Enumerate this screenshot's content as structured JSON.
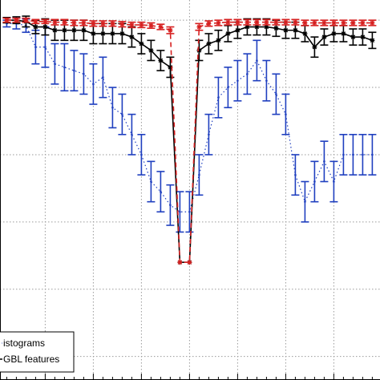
{
  "chart_data": {
    "type": "line",
    "x": [
      1,
      2,
      3,
      4,
      5,
      6,
      7,
      8,
      9,
      10,
      11,
      12,
      13,
      14,
      15,
      16,
      17,
      18,
      19,
      20,
      21,
      22,
      23,
      24,
      25,
      26,
      27,
      28,
      29,
      30,
      31,
      32,
      33,
      34,
      35,
      36,
      37,
      38,
      39
    ],
    "xlim": [
      0.3,
      39.8
    ],
    "ylim": [
      0.465,
      1.03
    ],
    "grid": true,
    "series": [
      {
        "name": "",
        "color": "#1f3fbf",
        "style": "dotted",
        "y": [
          0.995,
          0.995,
          0.992,
          0.96,
          0.96,
          0.935,
          0.93,
          0.925,
          0.92,
          0.905,
          0.915,
          0.87,
          0.86,
          0.83,
          0.8,
          0.76,
          0.745,
          0.725,
          0.715,
          0.715,
          0.77,
          0.83,
          0.885,
          0.9,
          0.91,
          0.92,
          0.94,
          0.91,
          0.89,
          0.86,
          0.77,
          0.73,
          0.76,
          0.79,
          0.76,
          0.8,
          0.8,
          0.8,
          0.8
        ],
        "err": [
          0.005,
          0.008,
          0.01,
          0.025,
          0.03,
          0.03,
          0.035,
          0.03,
          0.03,
          0.03,
          0.03,
          0.03,
          0.03,
          0.03,
          0.03,
          0.03,
          0.03,
          0.03,
          0.03,
          0.03,
          0.03,
          0.03,
          0.03,
          0.03,
          0.03,
          0.03,
          0.03,
          0.03,
          0.03,
          0.03,
          0.03,
          0.03,
          0.03,
          0.03,
          0.03,
          0.03,
          0.03,
          0.03,
          0.03
        ]
      },
      {
        "name": "",
        "color": "#000000",
        "style": "solid",
        "y": [
          1.0,
          1.0,
          0.998,
          0.99,
          0.99,
          0.985,
          0.985,
          0.985,
          0.985,
          0.98,
          0.98,
          0.98,
          0.98,
          0.975,
          0.965,
          0.955,
          0.94,
          0.93,
          0.64,
          0.64,
          0.955,
          0.965,
          0.97,
          0.98,
          0.985,
          0.99,
          0.99,
          0.99,
          0.988,
          0.985,
          0.985,
          0.98,
          0.96,
          0.975,
          0.98,
          0.98,
          0.975,
          0.975,
          0.97
        ],
        "err": [
          0.004,
          0.005,
          0.008,
          0.01,
          0.012,
          0.015,
          0.015,
          0.015,
          0.015,
          0.015,
          0.015,
          0.015,
          0.015,
          0.015,
          0.015,
          0.015,
          0.015,
          0.015,
          0.0,
          0.0,
          0.015,
          0.015,
          0.015,
          0.012,
          0.012,
          0.012,
          0.012,
          0.012,
          0.012,
          0.012,
          0.012,
          0.012,
          0.015,
          0.012,
          0.012,
          0.012,
          0.012,
          0.012,
          0.012
        ]
      },
      {
        "name": "",
        "color": "#d62020",
        "style": "dashed",
        "y": [
          1.0,
          1.0,
          1.0,
          0.998,
          0.998,
          0.997,
          0.997,
          0.996,
          0.996,
          0.995,
          0.995,
          0.995,
          0.994,
          0.993,
          0.993,
          0.992,
          0.99,
          0.985,
          0.64,
          0.64,
          0.99,
          0.995,
          0.996,
          0.997,
          0.997,
          0.997,
          0.997,
          0.997,
          0.997,
          0.997,
          0.997,
          0.996,
          0.996,
          0.996,
          0.996,
          0.996,
          0.996,
          0.996,
          0.996
        ],
        "err": [
          0.003,
          0.003,
          0.003,
          0.003,
          0.003,
          0.004,
          0.004,
          0.004,
          0.004,
          0.004,
          0.004,
          0.004,
          0.004,
          0.004,
          0.004,
          0.004,
          0.004,
          0.005,
          0.0,
          0.0,
          0.005,
          0.004,
          0.004,
          0.004,
          0.004,
          0.004,
          0.004,
          0.004,
          0.004,
          0.004,
          0.004,
          0.004,
          0.004,
          0.004,
          0.004,
          0.004,
          0.004,
          0.004,
          0.004
        ]
      }
    ],
    "legend": {
      "position": "bottom-left",
      "entries": [
        {
          "label": "istograms",
          "color": "#1f3fbf",
          "style": "dotted"
        },
        {
          "label": "GBL features",
          "color": "#000000",
          "style": "solid"
        }
      ]
    }
  }
}
